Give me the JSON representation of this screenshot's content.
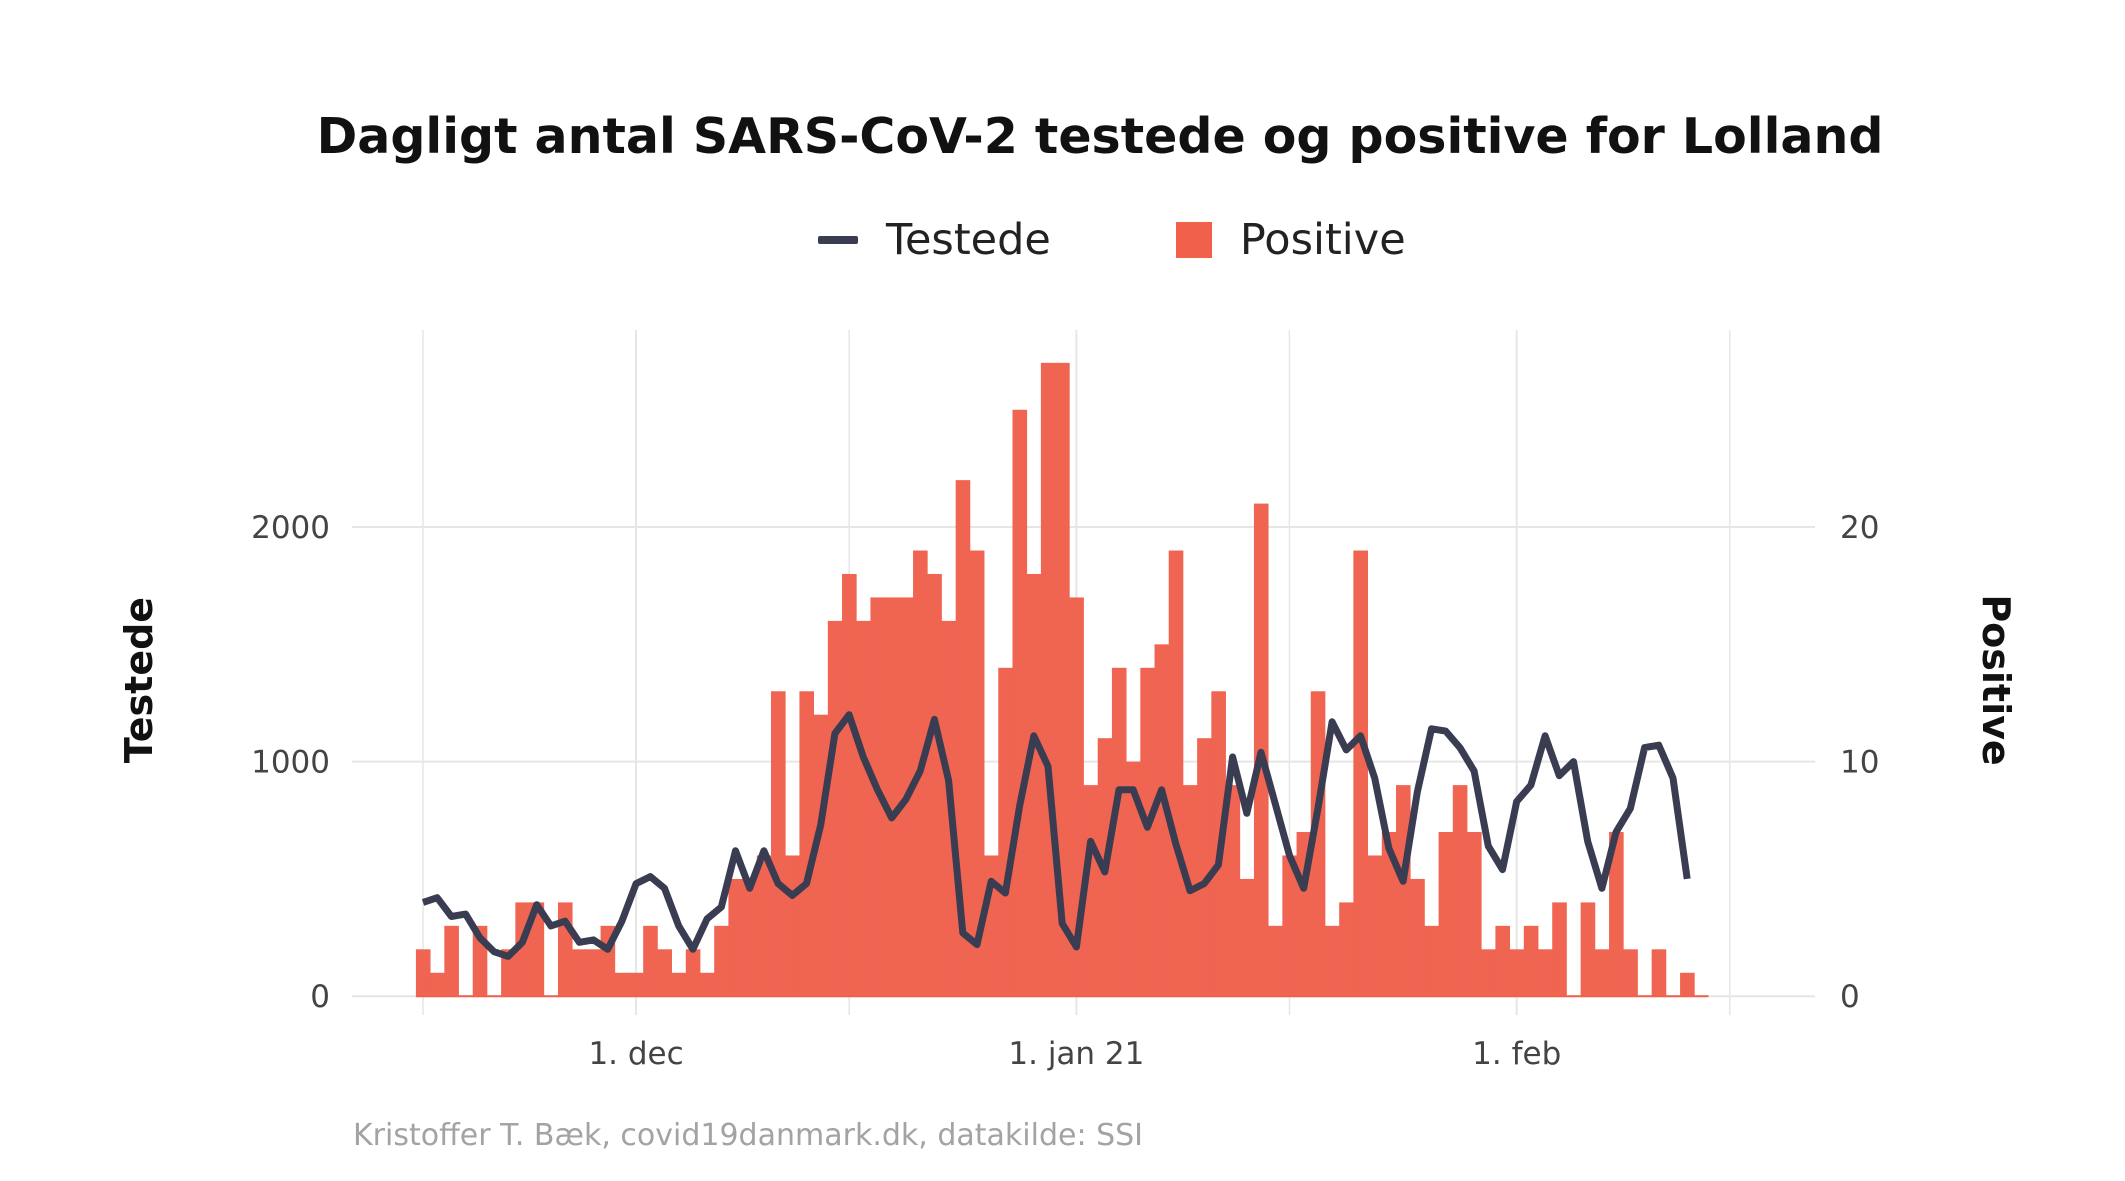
{
  "chart_data": {
    "type": "bar",
    "title": "Dagligt antal SARS-CoV-2 testede og positive for Lolland",
    "ylabel_left": "Testede",
    "ylabel_right": "Positive",
    "xlabel": "",
    "x_start_date": "2020-11-16",
    "x_ticks": [
      "1. dec",
      "1. jan 21",
      "1. feb"
    ],
    "y_ticks_left": [
      "0",
      "1000",
      "2000"
    ],
    "y_ticks_right": [
      "0",
      "10",
      "20"
    ],
    "ylim_left": [
      -80,
      2840
    ],
    "ylim_right": [
      -0.8,
      28.4
    ],
    "xlim_days": [
      -5,
      98
    ],
    "grid": true,
    "legend_position": "top",
    "colors": {
      "testede": "#3a3d52",
      "positive": "#f0604b",
      "grid": "#e6e6e6",
      "caption": "#a3a3a3"
    },
    "series": [
      {
        "name": "Testede",
        "kind": "line",
        "values": [
          400,
          420,
          340,
          350,
          250,
          190,
          170,
          230,
          390,
          300,
          320,
          230,
          240,
          200,
          320,
          480,
          510,
          460,
          300,
          200,
          330,
          380,
          620,
          460,
          620,
          480,
          430,
          480,
          730,
          1120,
          1200,
          1020,
          880,
          760,
          840,
          960,
          1180,
          920,
          270,
          220,
          490,
          440,
          810,
          1110,
          980,
          310,
          210,
          660,
          530,
          880,
          880,
          720,
          880,
          650,
          450,
          480,
          560,
          1020,
          780,
          1040,
          820,
          600,
          460,
          800,
          1170,
          1050,
          1110,
          930,
          630,
          490,
          870,
          1140,
          1130,
          1060,
          960,
          640,
          540,
          830,
          900,
          1110,
          940,
          1000,
          660,
          460,
          700,
          800,
          1060,
          1070,
          930,
          500
        ]
      },
      {
        "name": "Positive",
        "kind": "bar",
        "values": [
          2,
          1,
          3,
          0,
          3,
          0,
          2,
          4,
          4,
          0,
          4,
          2,
          2,
          3,
          1,
          1,
          3,
          2,
          1,
          2,
          1,
          3,
          5,
          5,
          6,
          13,
          6,
          13,
          12,
          16,
          18,
          16,
          17,
          17,
          17,
          19,
          18,
          16,
          22,
          19,
          6,
          14,
          25,
          18,
          27,
          27,
          17,
          9,
          11,
          14,
          10,
          14,
          15,
          19,
          9,
          11,
          13,
          9,
          5,
          21,
          3,
          6,
          7,
          13,
          3,
          4,
          19,
          6,
          7,
          9,
          5,
          3,
          7,
          9,
          7,
          2,
          3,
          2,
          3,
          2,
          4,
          0,
          4,
          2,
          7,
          2,
          0,
          2,
          0,
          1,
          0
        ]
      }
    ]
  },
  "caption": "Kristoffer T. Bæk, covid19danmark.dk, datakilde: SSI"
}
